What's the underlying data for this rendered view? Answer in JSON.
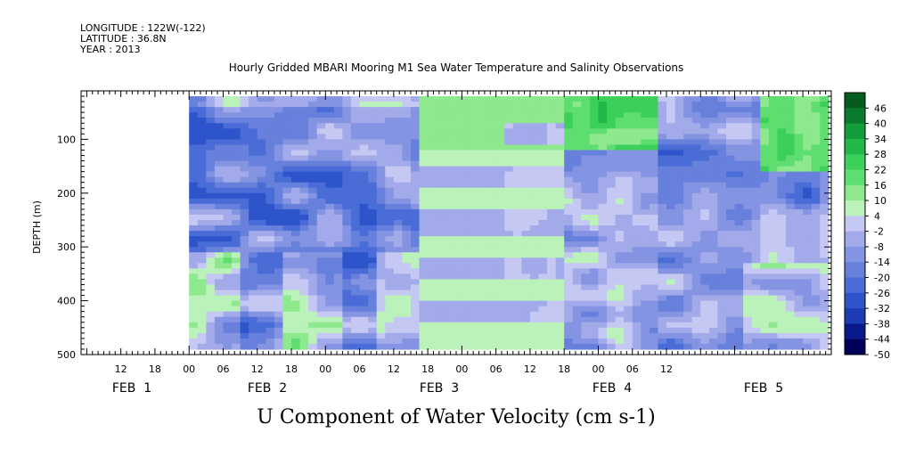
{
  "header": {
    "longitude": "LONGITUDE : 122W(-122)",
    "latitude": "LATITUDE : 36.8N",
    "year": "YEAR : 2013"
  },
  "chart_data": {
    "type": "heatmap",
    "title": "Hourly Gridded MBARI Mooring M1 Sea Water Temperature and Salinity Observations",
    "xlabel": "U Component of Water Velocity (cm s-1)",
    "ylabel": "DEPTH (m)",
    "y_reversed": true,
    "ylim": [
      500,
      10
    ],
    "y_ticks": [
      100,
      200,
      300,
      400,
      500
    ],
    "x_hour_ticks": [
      "12",
      "18",
      "00",
      "06",
      "12",
      "18",
      "00",
      "06",
      "12",
      "18",
      "00",
      "06",
      "12",
      "18",
      "00",
      "06",
      "12"
    ],
    "x_day_labels": [
      "FEB  1",
      "FEB  2",
      "FEB  3",
      "FEB  4",
      "FEB  5"
    ],
    "x_range_hours": [
      -19,
      113
    ],
    "data_start_hour": 0,
    "data_end_hour": 112,
    "colorbar": {
      "labels": [
        "46",
        "40",
        "34",
        "28",
        "22",
        "16",
        "10",
        "4",
        "-2",
        "-8",
        "-14",
        "-20",
        "-26",
        "-32",
        "-38",
        "-44",
        "-50"
      ],
      "min": -50,
      "max": 52,
      "step": 3,
      "colors": {
        "-50": "#00005a",
        "-44": "#0a1a8c",
        "-38": "#1c3cb4",
        "-32": "#2e54cc",
        "-26": "#4a6cd6",
        "-20": "#6680dc",
        "-14": "#8494e2",
        "-8": "#a2aaea",
        "-2": "#c4c8f2",
        "4": "#baf2ba",
        "10": "#8ee88e",
        "16": "#5ede70",
        "22": "#3cd05a",
        "28": "#22b848",
        "34": "#129c3a",
        "40": "#0a7a2c",
        "46": "#065c1e",
        "52": "#043e14"
      }
    }
  }
}
